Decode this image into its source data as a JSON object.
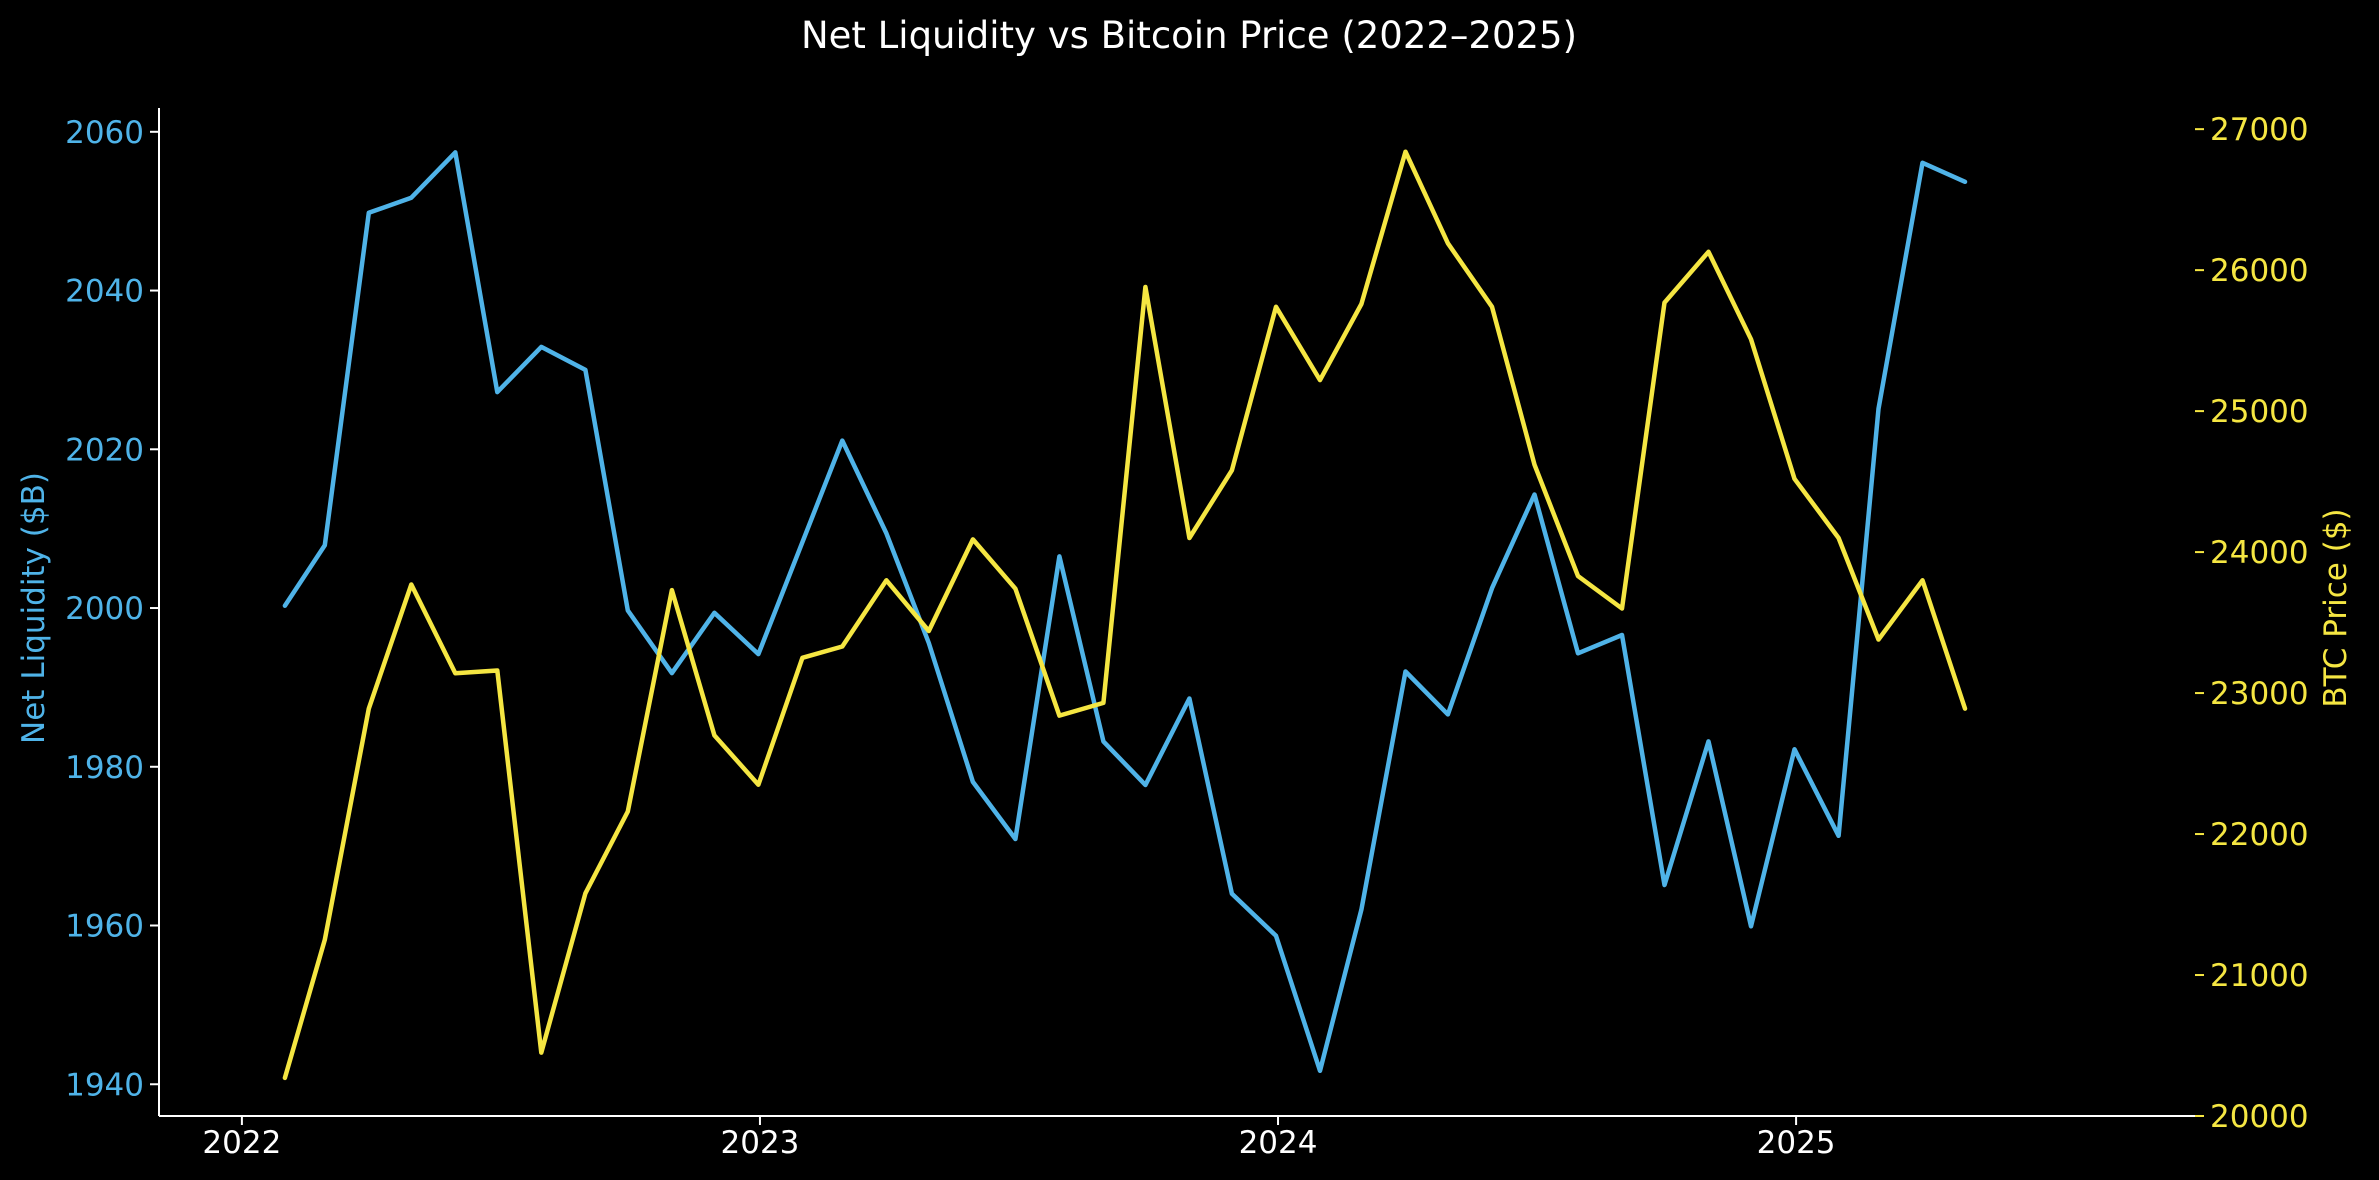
{
  "chart_data": {
    "type": "line",
    "title": "Net Liquidity vs Bitcoin Price (2022–2025)",
    "xlabel": "",
    "ylabel_left": "Net Liquidity ($B)",
    "ylabel_right": "BTC Price ($)",
    "colors": {
      "left": "#4fb3e8",
      "right": "#f5e642",
      "axes": "#ffffff",
      "background": "#000000"
    },
    "xlim": [
      2021.84,
      2025.77
    ],
    "ylim_left": [
      1936,
      2063
    ],
    "ylim_right": [
      20000,
      27150
    ],
    "x_ticks": [
      {
        "value": 2022,
        "label": "2022"
      },
      {
        "value": 2023,
        "label": "2023"
      },
      {
        "value": 2024,
        "label": "2024"
      },
      {
        "value": 2025,
        "label": "2025"
      }
    ],
    "y_ticks_left": [
      {
        "value": 1940,
        "label": "1940"
      },
      {
        "value": 1960,
        "label": "1960"
      },
      {
        "value": 1980,
        "label": "1980"
      },
      {
        "value": 2000,
        "label": "2000"
      },
      {
        "value": 2020,
        "label": "2020"
      },
      {
        "value": 2040,
        "label": "2040"
      },
      {
        "value": 2060,
        "label": "2060"
      }
    ],
    "y_ticks_right": [
      {
        "value": 20000,
        "label": "20000"
      },
      {
        "value": 21000,
        "label": "21000"
      },
      {
        "value": 22000,
        "label": "22000"
      },
      {
        "value": 23000,
        "label": "23000"
      },
      {
        "value": 24000,
        "label": "24000"
      },
      {
        "value": 25000,
        "label": "25000"
      },
      {
        "value": 26000,
        "label": "26000"
      },
      {
        "value": 27000,
        "label": "27000"
      }
    ],
    "x": [
      "2022-01-31",
      "2022-02-28",
      "2022-03-31",
      "2022-04-30",
      "2022-05-31",
      "2022-06-30",
      "2022-07-31",
      "2022-08-31",
      "2022-09-30",
      "2022-10-31",
      "2022-11-30",
      "2022-12-31",
      "2023-01-31",
      "2023-02-28",
      "2023-03-31",
      "2023-04-30",
      "2023-05-31",
      "2023-06-30",
      "2023-07-31",
      "2023-08-31",
      "2023-09-30",
      "2023-10-31",
      "2023-11-30",
      "2023-12-31",
      "2024-01-31",
      "2024-02-29",
      "2024-03-31",
      "2024-04-30",
      "2024-05-31",
      "2024-06-30",
      "2024-07-31",
      "2024-08-31",
      "2024-09-30",
      "2024-10-31",
      "2024-11-30",
      "2024-12-31",
      "2025-01-31",
      "2025-02-28",
      "2025-03-31",
      "2025-04-30"
    ],
    "x_decimal": [
      2022.083,
      2022.16,
      2022.245,
      2022.327,
      2022.412,
      2022.493,
      2022.578,
      2022.663,
      2022.745,
      2022.83,
      2022.912,
      2022.997,
      2023.082,
      2023.159,
      2023.244,
      2023.326,
      2023.411,
      2023.493,
      2023.578,
      2023.663,
      2023.744,
      2023.829,
      2023.911,
      2023.996,
      2024.081,
      2024.161,
      2024.246,
      2024.328,
      2024.413,
      2024.495,
      2024.579,
      2024.664,
      2024.746,
      2024.831,
      2024.913,
      2024.997,
      2025.082,
      2025.159,
      2025.244,
      2025.326
    ],
    "series": [
      {
        "name": "Net Liquidity ($B)",
        "axis": "left",
        "values": [
          2000.3,
          2007.9,
          2049.8,
          2051.7,
          2057.4,
          2027.2,
          2032.9,
          2030.0,
          1999.7,
          1991.8,
          1999.4,
          1994.2,
          2008.3,
          2021.1,
          2009.4,
          1995.6,
          1978.1,
          1970.9,
          2006.5,
          1983.2,
          1977.7,
          1988.6,
          1964.0,
          1958.7,
          1941.7,
          1962.0,
          1992.0,
          1986.6,
          2002.5,
          2014.3,
          1994.3,
          1996.6,
          1965.1,
          1983.2,
          1959.9,
          1982.2,
          1971.3,
          2025.1,
          2056.1,
          2053.7
        ]
      },
      {
        "name": "BTC Price ($)",
        "axis": "right",
        "values": [
          20270,
          21250,
          22890,
          23770,
          23140,
          23160,
          20450,
          21580,
          22160,
          23730,
          22700,
          22350,
          23250,
          23330,
          23800,
          23440,
          24090,
          23740,
          22840,
          22930,
          25880,
          24100,
          24580,
          25740,
          25220,
          25760,
          26840,
          26190,
          25740,
          24620,
          23830,
          23600,
          25770,
          26130,
          25510,
          24520,
          24100,
          23380,
          23800,
          22890
        ]
      }
    ]
  }
}
